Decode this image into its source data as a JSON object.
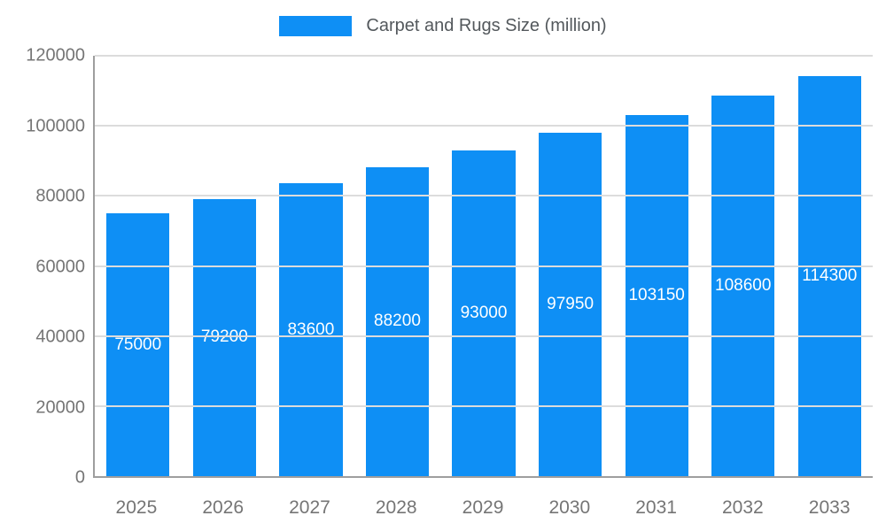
{
  "legend": {
    "label": "Carpet and Rugs Size (million)",
    "swatch_color": "#0e8ff5"
  },
  "chart_data": {
    "type": "bar",
    "title": "Carpet and Rugs Size (million)",
    "categories": [
      "2025",
      "2026",
      "2027",
      "2028",
      "2029",
      "2030",
      "2031",
      "2032",
      "2033"
    ],
    "values": [
      75000,
      79200,
      83600,
      88200,
      93000,
      97950,
      103150,
      108600,
      114300
    ],
    "value_labels": [
      "75000",
      "79200",
      "83600",
      "88200",
      "93000",
      "97950",
      "103150",
      "108600",
      "114300"
    ],
    "xlabel": "",
    "ylabel": "",
    "ylim": [
      0,
      120000
    ],
    "y_ticks": [
      0,
      20000,
      40000,
      60000,
      80000,
      100000,
      120000
    ],
    "grid": true,
    "legend_position": "top",
    "bar_color": "#0e8ff5",
    "value_label_color": "#ffffff",
    "tick_label_color": "#757575",
    "gridline_color": "#dcdcdc",
    "axis_color": "#9e9e9e"
  }
}
